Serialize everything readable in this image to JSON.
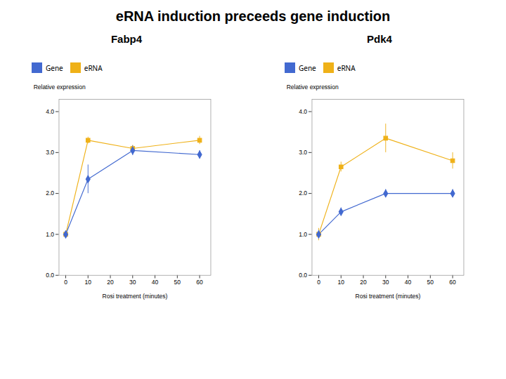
{
  "title": "eRNA induction preceeds gene induction",
  "chart_data": [
    {
      "type": "line",
      "title": "Fabp4",
      "x": [
        0,
        10,
        30,
        60
      ],
      "xlabel": "Rosi treatment (minutes)",
      "ylabel": "Relative expression",
      "xlim": [
        -3,
        65
      ],
      "xticks": [
        0,
        10,
        20,
        30,
        40,
        50,
        60
      ],
      "ylim": [
        0,
        4.3
      ],
      "yticks": [
        0,
        1,
        2,
        3,
        4
      ],
      "series": [
        {
          "name": "Gene",
          "marker": "diamond",
          "values": [
            1.0,
            2.35,
            3.05,
            2.95
          ],
          "yerr": [
            0.05,
            0.35,
            0.12,
            0.1
          ]
        },
        {
          "name": "eRNA",
          "marker": "square",
          "values": [
            1.0,
            3.3,
            3.1,
            3.3
          ],
          "yerr": [
            0.05,
            0.08,
            0.08,
            0.1
          ]
        }
      ]
    },
    {
      "type": "line",
      "title": "Pdk4",
      "x": [
        0,
        10,
        30,
        60
      ],
      "xlabel": "Rosi treatment (minutes)",
      "ylabel": "Relative expression",
      "xlim": [
        -3,
        65
      ],
      "xticks": [
        0,
        10,
        20,
        30,
        40,
        50,
        60
      ],
      "ylim": [
        0,
        4.3
      ],
      "yticks": [
        0,
        1,
        2,
        3,
        4
      ],
      "series": [
        {
          "name": "Gene",
          "marker": "diamond",
          "values": [
            1.0,
            1.55,
            2.0,
            2.0
          ],
          "yerr": [
            0.1,
            0.1,
            0.1,
            0.1
          ]
        },
        {
          "name": "eRNA",
          "marker": "square",
          "values": [
            1.0,
            2.65,
            3.35,
            2.8
          ],
          "yerr": [
            0.15,
            0.12,
            0.35,
            0.2
          ]
        }
      ]
    }
  ]
}
